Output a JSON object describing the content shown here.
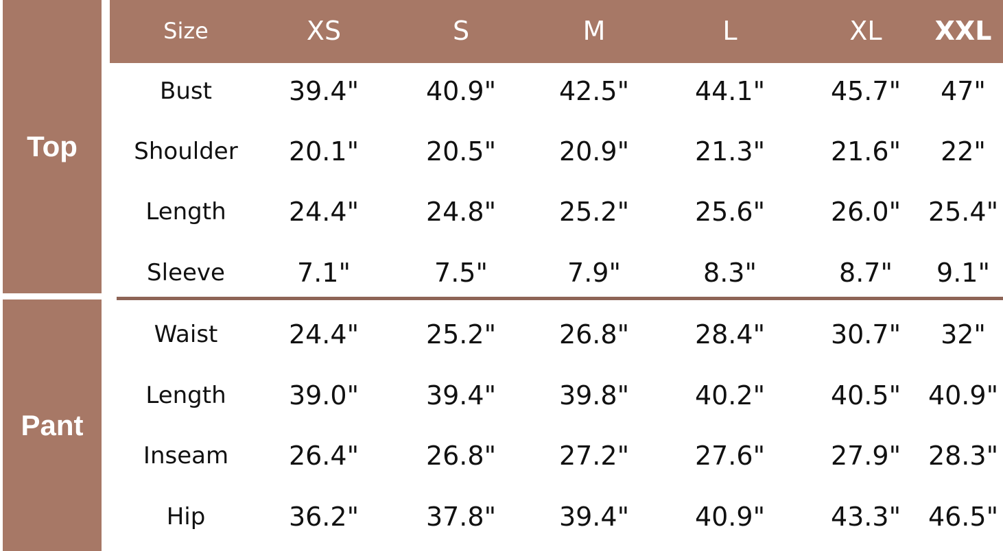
{
  "header": [
    "Size",
    "XS",
    "S",
    "M",
    "L",
    "XL",
    "XXL"
  ],
  "sections": [
    {
      "label": "Top",
      "rows": [
        {
          "name": "Bust",
          "values": [
            "39.4\"",
            "40.9\"",
            "42.5\"",
            "44.1\"",
            "45.7\"",
            "47\""
          ]
        },
        {
          "name": "Shoulder",
          "values": [
            "20.1\"",
            "20.5\"",
            "20.9\"",
            "21.3\"",
            "21.6\"",
            "22\""
          ]
        },
        {
          "name": "Length",
          "values": [
            "24.4\"",
            "24.8\"",
            "25.2\"",
            "25.6\"",
            "26.0\"",
            "25.4\""
          ]
        },
        {
          "name": "Sleeve",
          "values": [
            "7.1\"",
            "7.5\"",
            "7.9\"",
            "8.3\"",
            "8.7\"",
            "9.1\""
          ]
        }
      ]
    },
    {
      "label": "Pant",
      "rows": [
        {
          "name": "Waist",
          "values": [
            "24.4\"",
            "25.2\"",
            "26.8\"",
            "28.4\"",
            "30.7\"",
            "32\""
          ]
        },
        {
          "name": "Length",
          "values": [
            "39.0\"",
            "39.4\"",
            "39.8\"",
            "40.2\"",
            "40.5\"",
            "40.9\""
          ]
        },
        {
          "name": "Inseam",
          "values": [
            "26.4\"",
            "26.8\"",
            "27.2\"",
            "27.6\"",
            "27.9\"",
            "28.3\""
          ]
        },
        {
          "name": "Hip",
          "values": [
            "36.2\"",
            "37.8\"",
            "39.4\"",
            "40.9\"",
            "43.3\"",
            "46.5\""
          ]
        }
      ]
    }
  ],
  "colors": {
    "band": "#a77866",
    "divider": "#8e6456",
    "text": "#111111"
  }
}
